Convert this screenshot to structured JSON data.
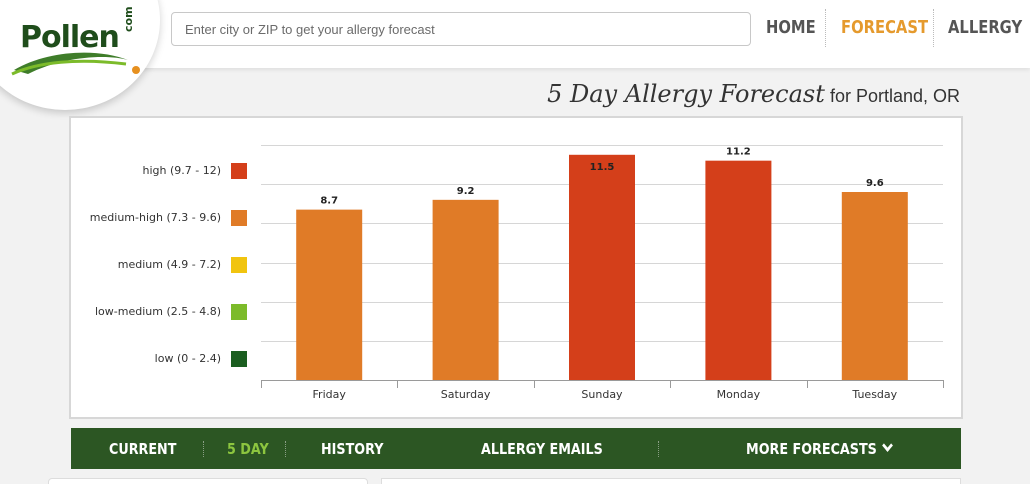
{
  "brand": {
    "logo_text": "Pollen",
    "logo_suffix": "com",
    "accent_green": "#2c5623",
    "accent_orange": "#e59a2d"
  },
  "search": {
    "placeholder": "Enter city or ZIP to get your allergy forecast",
    "value": ""
  },
  "nav": {
    "home": "HOME",
    "forecast": "FORECAST",
    "allergy": "ALLERGY",
    "active": "forecast"
  },
  "page": {
    "title": "5 Day Allergy Forecast",
    "location": "for Portland, OR"
  },
  "legend": [
    {
      "label": "high (9.7 - 12)",
      "color": "#d43f1a"
    },
    {
      "label": "medium-high (7.3 - 9.6)",
      "color": "#e07b27"
    },
    {
      "label": "medium (4.9 - 7.2)",
      "color": "#f1c40f"
    },
    {
      "label": "low-medium (2.5 - 4.8)",
      "color": "#7cbb2a"
    },
    {
      "label": "low (0 - 2.4)",
      "color": "#1b5e20"
    }
  ],
  "chart_data": {
    "type": "bar",
    "categories": [
      "Friday",
      "Saturday",
      "Sunday",
      "Monday",
      "Tuesday"
    ],
    "values": [
      8.7,
      9.2,
      11.5,
      11.2,
      9.6
    ],
    "value_labels": [
      "8.7",
      "9.2",
      "11.5",
      "11.2",
      "9.6"
    ],
    "colors": [
      "#e07b27",
      "#e07b27",
      "#d43f1a",
      "#d43f1a",
      "#e07b27"
    ],
    "ylim": [
      0,
      12
    ],
    "grid": true,
    "legend_position": "left"
  },
  "tabs": [
    {
      "label": "CURRENT",
      "active": false
    },
    {
      "label": "5 DAY",
      "active": true
    },
    {
      "label": "HISTORY",
      "active": false
    },
    {
      "label": "ALLERGY EMAILS",
      "active": false
    },
    {
      "label": "MORE FORECASTS",
      "active": false
    }
  ]
}
